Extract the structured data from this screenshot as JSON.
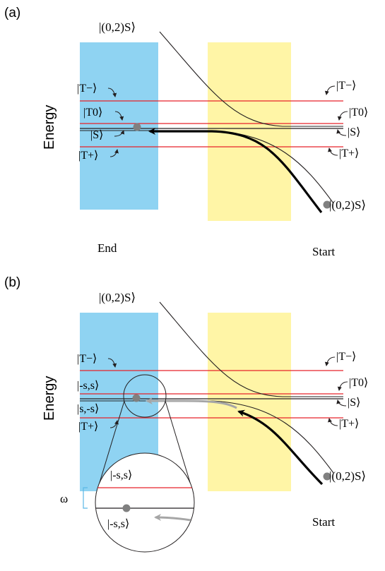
{
  "panel_a": {
    "label": "(a)",
    "ylabel": "Energy",
    "left_levels": [
      "|T−⟩",
      "|T0⟩",
      "|S⟩",
      "|T+⟩"
    ],
    "right_levels": [
      "|T−⟩",
      "|T0⟩",
      "|S⟩",
      "|T+⟩"
    ],
    "top_state": "|(0,2)S⟩",
    "bottom_state": "|(0,2)S⟩",
    "end_label": "End",
    "start_label": "Start"
  },
  "panel_b": {
    "label": "(b)",
    "ylabel": "Energy",
    "left_levels": [
      "|T−⟩",
      "|-s,s⟩",
      "|s,-s⟩",
      "|T+⟩"
    ],
    "right_levels": [
      "|T−⟩",
      "|T0⟩",
      "|S⟩",
      "|T+⟩"
    ],
    "top_state": "|(0,2)S⟩",
    "bottom_state": "|(0,2)S⟩",
    "inset_top": "|-s,s⟩",
    "inset_bottom": "|-s,s⟩",
    "omega": "ω",
    "start_label": "Start"
  },
  "colors": {
    "blue_region": "#8fd3f2",
    "yellow_region": "#fff5a6",
    "level_red": "#e8232a",
    "level_black": "#231f20",
    "arrow_black": "#000000",
    "arrow_gray": "#a6a6a6",
    "dot_gray": "#808080",
    "omega_bracket": "#5bb8e6"
  }
}
